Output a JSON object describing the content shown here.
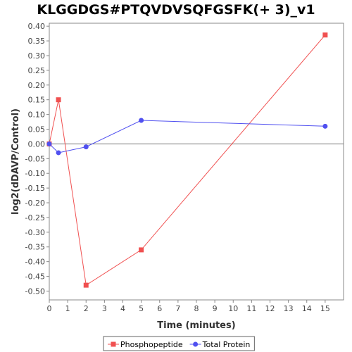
{
  "chart_data": {
    "type": "line",
    "title": "KLGGDGS#PTQVDVSQFGSFK(+ 3)_v1",
    "xlabel": "Time (minutes)",
    "ylabel": "log2(dDAVP/Control)",
    "xlim": [
      0,
      16
    ],
    "ylim": [
      -0.53,
      0.41
    ],
    "xticks": [
      0,
      1,
      2,
      3,
      4,
      5,
      6,
      7,
      8,
      9,
      10,
      11,
      12,
      13,
      14,
      15
    ],
    "yticks": [
      0.4,
      0.35,
      0.3,
      0.25,
      0.2,
      0.15,
      0.1,
      0.05,
      0.0,
      -0.05,
      -0.1,
      -0.15,
      -0.2,
      -0.25,
      -0.3,
      -0.35,
      -0.4,
      -0.45,
      -0.5
    ],
    "grid": false,
    "legend_position": "bottom",
    "series": [
      {
        "name": "Phosphopeptide",
        "color": "#f05050",
        "marker": "square",
        "x": [
          0,
          0.5,
          2,
          5,
          15
        ],
        "y": [
          0.0,
          0.15,
          -0.48,
          -0.36,
          0.37
        ]
      },
      {
        "name": "Total Protein",
        "color": "#5050f0",
        "marker": "circle",
        "x": [
          0,
          0.5,
          2,
          5,
          15
        ],
        "y": [
          0.0,
          -0.03,
          -0.01,
          0.08,
          0.06
        ]
      }
    ]
  }
}
